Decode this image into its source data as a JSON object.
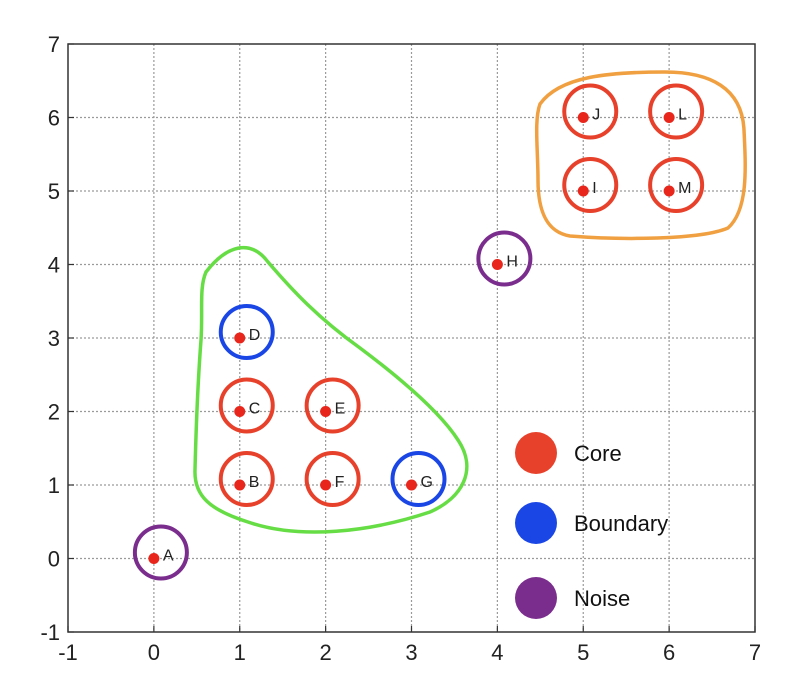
{
  "chart_data": {
    "type": "scatter",
    "title": "",
    "xlabel": "",
    "ylabel": "",
    "xlim": [
      -1,
      7
    ],
    "ylim": [
      -1,
      7
    ],
    "xticks": [
      "-1",
      "0",
      "1",
      "2",
      "3",
      "4",
      "5",
      "6",
      "7"
    ],
    "yticks": [
      "-1",
      "0",
      "1",
      "2",
      "3",
      "4",
      "5",
      "6",
      "7"
    ],
    "grid": true,
    "legend_position": "bottom-right",
    "legend": [
      {
        "name": "Core",
        "color": "#e8412b"
      },
      {
        "name": "Boundary",
        "color": "#1a46e6"
      },
      {
        "name": "Noise",
        "color": "#7b2d8e"
      }
    ],
    "points": [
      {
        "label": "A",
        "x": 0,
        "y": 0,
        "class": "Noise"
      },
      {
        "label": "B",
        "x": 1,
        "y": 1,
        "class": "Core"
      },
      {
        "label": "C",
        "x": 1,
        "y": 2,
        "class": "Core"
      },
      {
        "label": "D",
        "x": 1,
        "y": 3,
        "class": "Boundary"
      },
      {
        "label": "E",
        "x": 2,
        "y": 2,
        "class": "Core"
      },
      {
        "label": "F",
        "x": 2,
        "y": 1,
        "class": "Core"
      },
      {
        "label": "G",
        "x": 3,
        "y": 1,
        "class": "Boundary"
      },
      {
        "label": "H",
        "x": 4,
        "y": 4,
        "class": "Noise"
      },
      {
        "label": "I",
        "x": 5,
        "y": 5,
        "class": "Core"
      },
      {
        "label": "J",
        "x": 5,
        "y": 6,
        "class": "Core"
      },
      {
        "label": "L",
        "x": 6,
        "y": 6,
        "class": "Core"
      },
      {
        "label": "M",
        "x": 6,
        "y": 5,
        "class": "Core"
      }
    ],
    "clusters": [
      {
        "name": "green-cluster",
        "color": "#66dd44",
        "members": [
          "B",
          "C",
          "D",
          "E",
          "F",
          "G"
        ]
      },
      {
        "name": "orange-cluster",
        "color": "#f0a040",
        "members": [
          "I",
          "J",
          "L",
          "M"
        ]
      }
    ],
    "point_color": "#e8261b"
  }
}
